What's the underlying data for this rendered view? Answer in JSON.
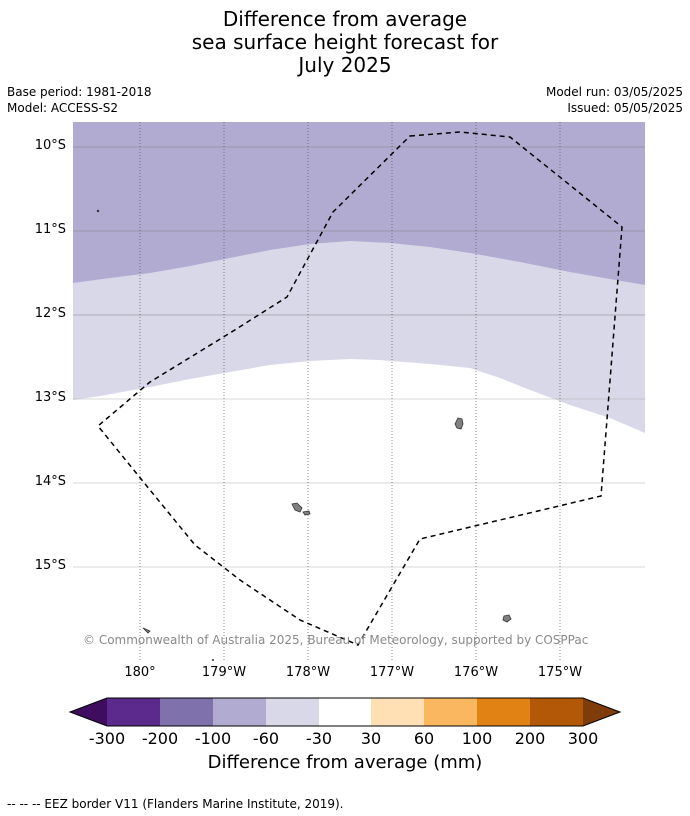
{
  "title": {
    "line1": "Difference from average",
    "line2": "sea surface height forecast for",
    "line3": "July 2025"
  },
  "meta": {
    "base_period": "Base period: 1981-2018",
    "model": "Model: ACCESS-S2",
    "model_run": "Model run: 03/05/2025",
    "issued": "Issued: 05/05/2025"
  },
  "map": {
    "lat_labels": [
      "10°S",
      "11°S",
      "12°S",
      "13°S",
      "14°S",
      "15°S"
    ],
    "lon_labels": [
      "180°",
      "179°W",
      "178°W",
      "177°W",
      "176°W",
      "175°W"
    ],
    "credit": "© Commonwealth of Australia 2025, Bureau of Meteorology, supported by COSPPac",
    "fill_colors": {
      "band_-100_-60": "#b1abd2",
      "band_-60_-30": "#d8d8e9",
      "band_-30_30": "#ffffff",
      "land": "#808080"
    },
    "eez_color": "#000000"
  },
  "colorbar": {
    "labels": [
      "-300",
      "-200",
      "-100",
      "-60",
      "-30",
      "30",
      "60",
      "100",
      "200",
      "300"
    ],
    "colors": [
      "#3f0d5f",
      "#5b2a8c",
      "#7f71ab",
      "#b1abd2",
      "#d8d8e9",
      "#ffffff",
      "#fee0b4",
      "#fbb660",
      "#e08214",
      "#b35807",
      "#7f3b08"
    ],
    "title": "Difference from average (mm)"
  },
  "footnote": "--  --  -- EEZ border V11 (Flanders Marine Institute, 2019)."
}
